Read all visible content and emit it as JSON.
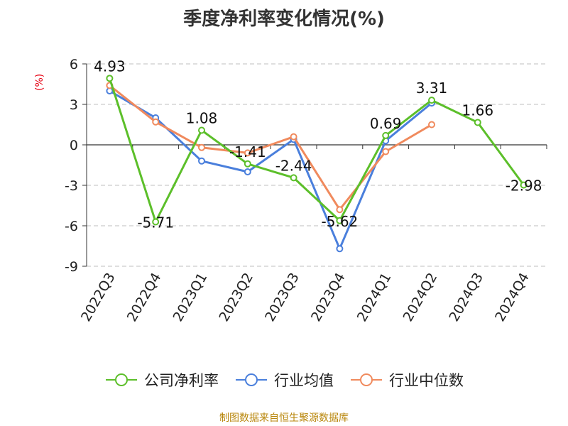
{
  "title": "季度净利率变化情况(%)",
  "unit_label": "(%)",
  "source": "制图数据来自恒生聚源数据库",
  "colors": {
    "company": "#5cbf2a",
    "industry_avg": "#4a7fdc",
    "industry_median": "#f08a5d",
    "axis": "#333333",
    "grid": "#cccccc",
    "unit": "#e60012",
    "source": "#b8860b"
  },
  "legend": [
    {
      "name": "公司净利率",
      "color": "#5cbf2a"
    },
    {
      "name": "行业均值",
      "color": "#4a7fdc"
    },
    {
      "name": "行业中位数",
      "color": "#f08a5d"
    }
  ],
  "chart_data": {
    "type": "line",
    "title": "季度净利率变化情况(%)",
    "ylabel": "(%)",
    "ylim": [
      -9,
      6
    ],
    "yticks": [
      6,
      3,
      0,
      -3,
      -6,
      -9
    ],
    "grid": true,
    "legend_position": "bottom",
    "categories": [
      "2022Q3",
      "2022Q4",
      "2023Q1",
      "2023Q2",
      "2023Q3",
      "2023Q4",
      "2024Q1",
      "2024Q2",
      "2024Q3",
      "2024Q4"
    ],
    "series": [
      {
        "name": "公司净利率",
        "values": [
          4.93,
          -5.71,
          1.08,
          -1.41,
          -2.44,
          -5.62,
          0.69,
          3.31,
          1.66,
          -2.98
        ],
        "labels": true
      },
      {
        "name": "行业均值",
        "values": [
          4.0,
          2.0,
          -1.2,
          -2.0,
          0.4,
          -7.7,
          0.3,
          3.1,
          null,
          null
        ],
        "labels": false
      },
      {
        "name": "行业中位数",
        "values": [
          4.4,
          1.7,
          -0.2,
          -0.6,
          0.6,
          -4.8,
          -0.5,
          1.5,
          null,
          null
        ],
        "labels": false
      }
    ]
  }
}
